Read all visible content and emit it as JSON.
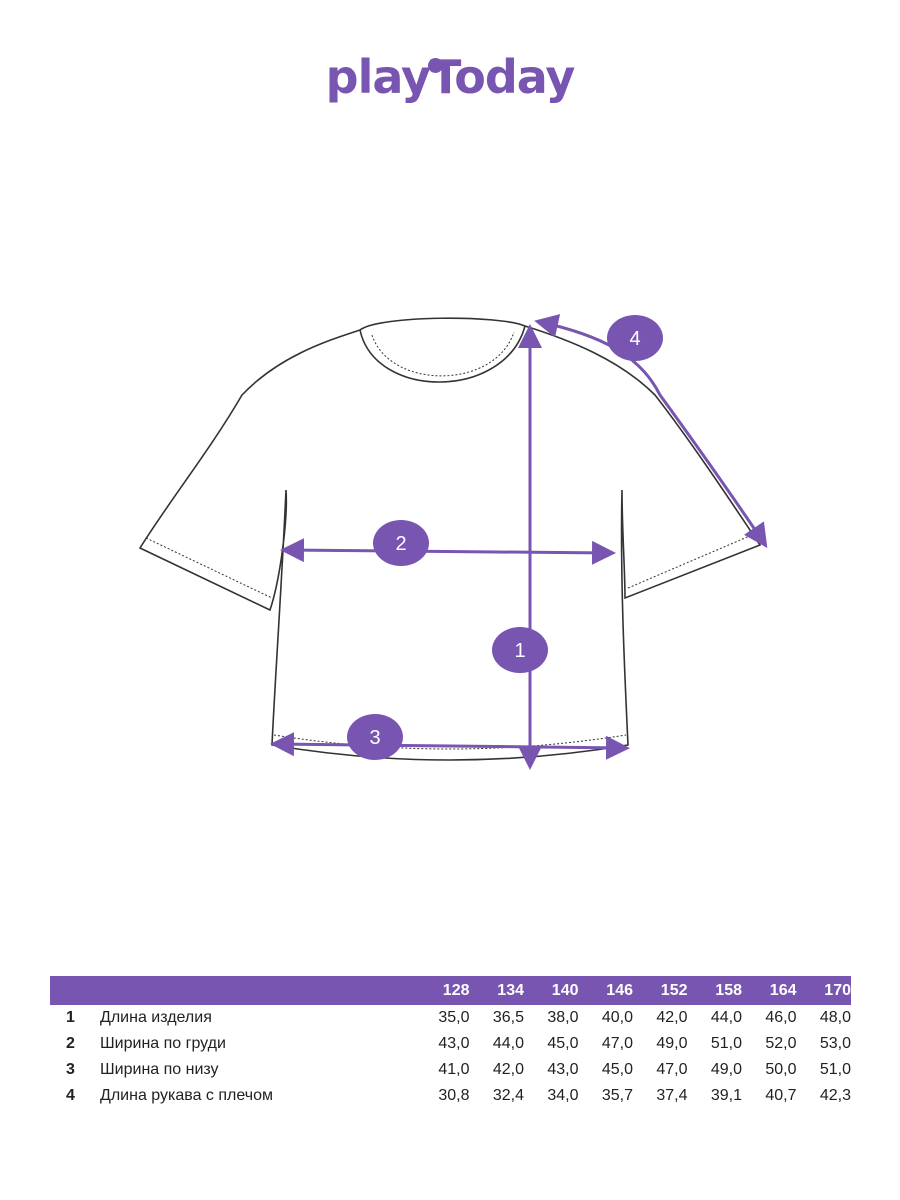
{
  "brand": {
    "logo_text": "playToday",
    "color": "#7755b0"
  },
  "diagram": {
    "markers": [
      "1",
      "2",
      "3",
      "4"
    ]
  },
  "size_table": {
    "sizes": [
      "128",
      "134",
      "140",
      "146",
      "152",
      "158",
      "164",
      "170"
    ],
    "rows": [
      {
        "num": "1",
        "label": "Длина изделия",
        "values": [
          "35,0",
          "36,5",
          "38,0",
          "40,0",
          "42,0",
          "44,0",
          "46,0",
          "48,0"
        ]
      },
      {
        "num": "2",
        "label": "Ширина по груди",
        "values": [
          "43,0",
          "44,0",
          "45,0",
          "47,0",
          "49,0",
          "51,0",
          "52,0",
          "53,0"
        ]
      },
      {
        "num": "3",
        "label": "Ширина по низу",
        "values": [
          "41,0",
          "42,0",
          "43,0",
          "45,0",
          "47,0",
          "49,0",
          "50,0",
          "51,0"
        ]
      },
      {
        "num": "4",
        "label": "Длина рукава с плечом",
        "values": [
          "30,8",
          "32,4",
          "34,0",
          "35,7",
          "37,4",
          "39,1",
          "40,7",
          "42,3"
        ]
      }
    ]
  }
}
